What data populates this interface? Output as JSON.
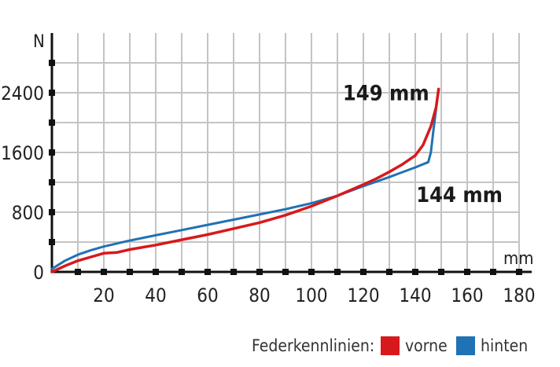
{
  "chart_data": {
    "type": "line",
    "xlabel": "mm",
    "ylabel": "N",
    "xlim": [
      0,
      180
    ],
    "ylim": [
      0,
      2800
    ],
    "x_ticks": [
      20,
      40,
      60,
      80,
      100,
      120,
      140,
      160,
      180
    ],
    "y_ticks": [
      0,
      800,
      1600,
      2400
    ],
    "grid": true,
    "legend_title": "Federkennlinien:",
    "legend_placement": "bottom-right",
    "series": [
      {
        "name": "vorne",
        "color": "#d7191c",
        "points": [
          [
            0,
            0
          ],
          [
            5,
            80
          ],
          [
            10,
            150
          ],
          [
            15,
            200
          ],
          [
            20,
            250
          ],
          [
            25,
            260
          ],
          [
            30,
            300
          ],
          [
            40,
            360
          ],
          [
            50,
            430
          ],
          [
            60,
            500
          ],
          [
            70,
            580
          ],
          [
            80,
            660
          ],
          [
            90,
            760
          ],
          [
            100,
            880
          ],
          [
            110,
            1020
          ],
          [
            120,
            1170
          ],
          [
            125,
            1250
          ],
          [
            130,
            1340
          ],
          [
            135,
            1440
          ],
          [
            140,
            1560
          ],
          [
            143,
            1700
          ],
          [
            146,
            1950
          ],
          [
            148,
            2200
          ],
          [
            149,
            2450
          ]
        ]
      },
      {
        "name": "hinten",
        "color": "#1f72b4",
        "points": [
          [
            0,
            40
          ],
          [
            5,
            150
          ],
          [
            10,
            230
          ],
          [
            15,
            290
          ],
          [
            20,
            340
          ],
          [
            30,
            420
          ],
          [
            40,
            490
          ],
          [
            50,
            560
          ],
          [
            60,
            630
          ],
          [
            70,
            700
          ],
          [
            80,
            770
          ],
          [
            90,
            840
          ],
          [
            100,
            920
          ],
          [
            110,
            1020
          ],
          [
            120,
            1150
          ],
          [
            130,
            1270
          ],
          [
            140,
            1400
          ],
          [
            145,
            1470
          ],
          [
            146,
            1600
          ],
          [
            147,
            1900
          ],
          [
            148,
            2180
          ]
        ]
      }
    ],
    "annotations": [
      {
        "text": "149 mm",
        "x": 149,
        "y": 2450
      },
      {
        "text": "144 mm",
        "x": 144,
        "y": 1400
      }
    ]
  }
}
